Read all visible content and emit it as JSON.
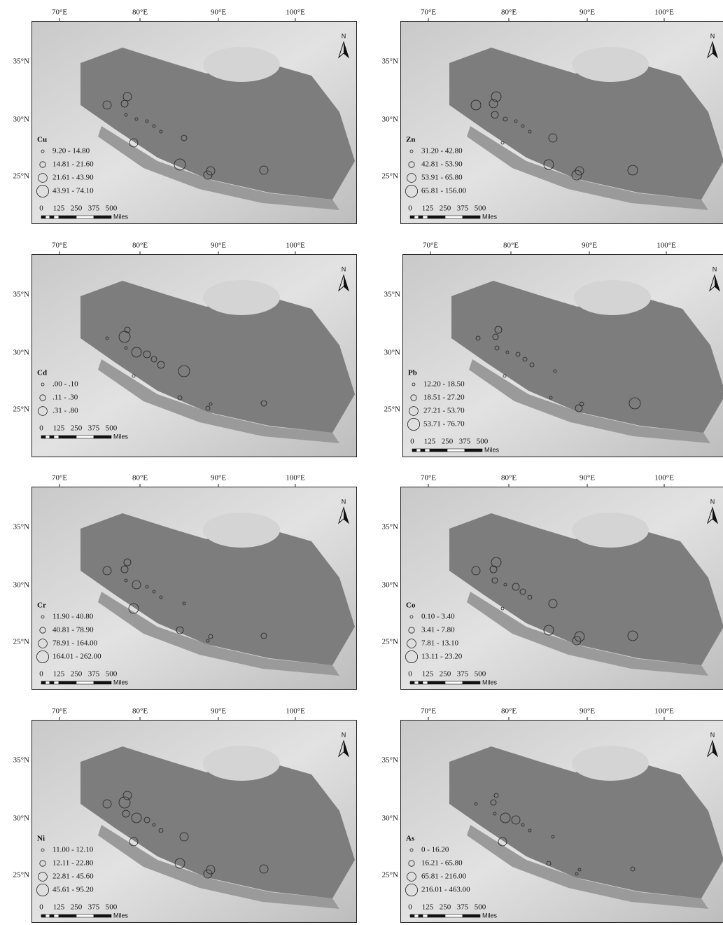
{
  "shared": {
    "longitudes": [
      "70°E",
      "80°E",
      "90°E",
      "100°E"
    ],
    "latitudes": [
      "35°N",
      "30°N",
      "25°N"
    ],
    "scale": [
      "0",
      "125",
      "250",
      "375",
      "500"
    ],
    "scale_unit": "Miles",
    "north": "N"
  },
  "panels": [
    {
      "element": "Cu",
      "legend": [
        "9.20 - 14.80",
        "14.81 - 21.60",
        "21.61 - 43.90",
        "43.91 - 74.10"
      ]
    },
    {
      "element": "Zn",
      "legend": [
        "31.20 - 42.80",
        "42.81 - 53.90",
        "53.91 - 65.80",
        "65.81 - 156.00"
      ]
    },
    {
      "element": "Cd",
      "legend": [
        ".00 - .10",
        ".11 - .30",
        ".31 - .80"
      ]
    },
    {
      "element": "Pb",
      "legend": [
        "12.20 - 18.50",
        "18.51 - 27.20",
        "27.21 - 53.70",
        "53.71 - 76.70"
      ]
    },
    {
      "element": "Cr",
      "legend": [
        "11.90 - 40.80",
        "40.81 - 78.90",
        "78.91 - 164.00",
        "164.01 - 262.00"
      ]
    },
    {
      "element": "Co",
      "legend": [
        "0.10 - 3.40",
        "3.41 - 7.80",
        "7.81 - 13.10",
        "13.11 - 23.20"
      ]
    },
    {
      "element": "Ni",
      "legend": [
        "11.00 - 12.10",
        "12.11 - 22.80",
        "22.81 - 45.60",
        "45.61 - 95.20"
      ]
    },
    {
      "element": "As",
      "legend": [
        "0 - 16.20",
        "16.21 - 65.80",
        "65.81 - 216.00",
        "216.01 - 463.00"
      ]
    }
  ]
}
